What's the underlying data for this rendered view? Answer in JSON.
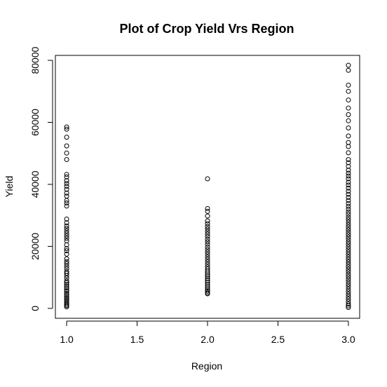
{
  "chart_data": {
    "type": "scatter",
    "title": "Plot of Crop Yield Vrs Region",
    "xlabel": "Region",
    "ylabel": "Yield",
    "xlim": [
      0.92,
      3.08
    ],
    "ylim": [
      -3200,
      81600
    ],
    "xticks": [
      1.0,
      1.5,
      2.0,
      2.5,
      3.0
    ],
    "xtick_labels": [
      "1.0",
      "1.5",
      "2.0",
      "2.5",
      "3.0"
    ],
    "yticks": [
      0,
      20000,
      40000,
      60000,
      80000
    ],
    "ytick_labels": [
      "0",
      "20000",
      "40000",
      "60000",
      "80000"
    ],
    "grid": false,
    "legend": "none",
    "series": [
      {
        "x": 1.0,
        "values": [
          58500,
          57800,
          55200,
          52400,
          50100,
          48000,
          43200,
          42400,
          41200,
          40300,
          39400,
          38400,
          37200,
          36200,
          34800,
          34000,
          33000,
          28800,
          27600,
          26600,
          25800,
          25000,
          24200,
          23400,
          22600,
          21800,
          20500,
          19300,
          18600,
          17500,
          16000,
          15100,
          14400,
          13600,
          12800,
          11900,
          11300,
          10600,
          9800,
          8900,
          8300,
          7700,
          7200,
          6600,
          6000,
          5500,
          4900,
          4400,
          3800,
          3300,
          2800,
          2300,
          1800,
          1300,
          900,
          500
        ]
      },
      {
        "x": 2.0,
        "values": [
          41800,
          32200,
          31300,
          29800,
          28200,
          27300,
          26400,
          25600,
          24800,
          24000,
          23200,
          22300,
          21500,
          20700,
          19800,
          19000,
          18200,
          17400,
          16600,
          15800,
          15000,
          14200,
          13400,
          12700,
          12000,
          11400,
          10800,
          10200,
          9600,
          9000,
          8400,
          7800,
          7200,
          6600,
          6000,
          5500,
          5000,
          4700
        ]
      },
      {
        "x": 3.0,
        "values": [
          78400,
          76800,
          72000,
          70000,
          67200,
          64600,
          62500,
          60500,
          58200,
          55600,
          53500,
          52200,
          50200,
          48000,
          47000,
          45800,
          44600,
          43600,
          42700,
          41800,
          40700,
          39800,
          38800,
          37800,
          36800,
          35800,
          34800,
          33800,
          32900,
          32000,
          31100,
          30300,
          29400,
          28600,
          27800,
          27000,
          26200,
          25400,
          24600,
          23800,
          23000,
          22200,
          21400,
          20600,
          19800,
          19000,
          18200,
          17400,
          16600,
          15800,
          15000,
          14200,
          13400,
          12600,
          11800,
          11000,
          10200,
          9400,
          8600,
          7800,
          7000,
          6200,
          5400,
          4600,
          3800,
          3000,
          2200,
          1400,
          800,
          300
        ]
      }
    ]
  }
}
